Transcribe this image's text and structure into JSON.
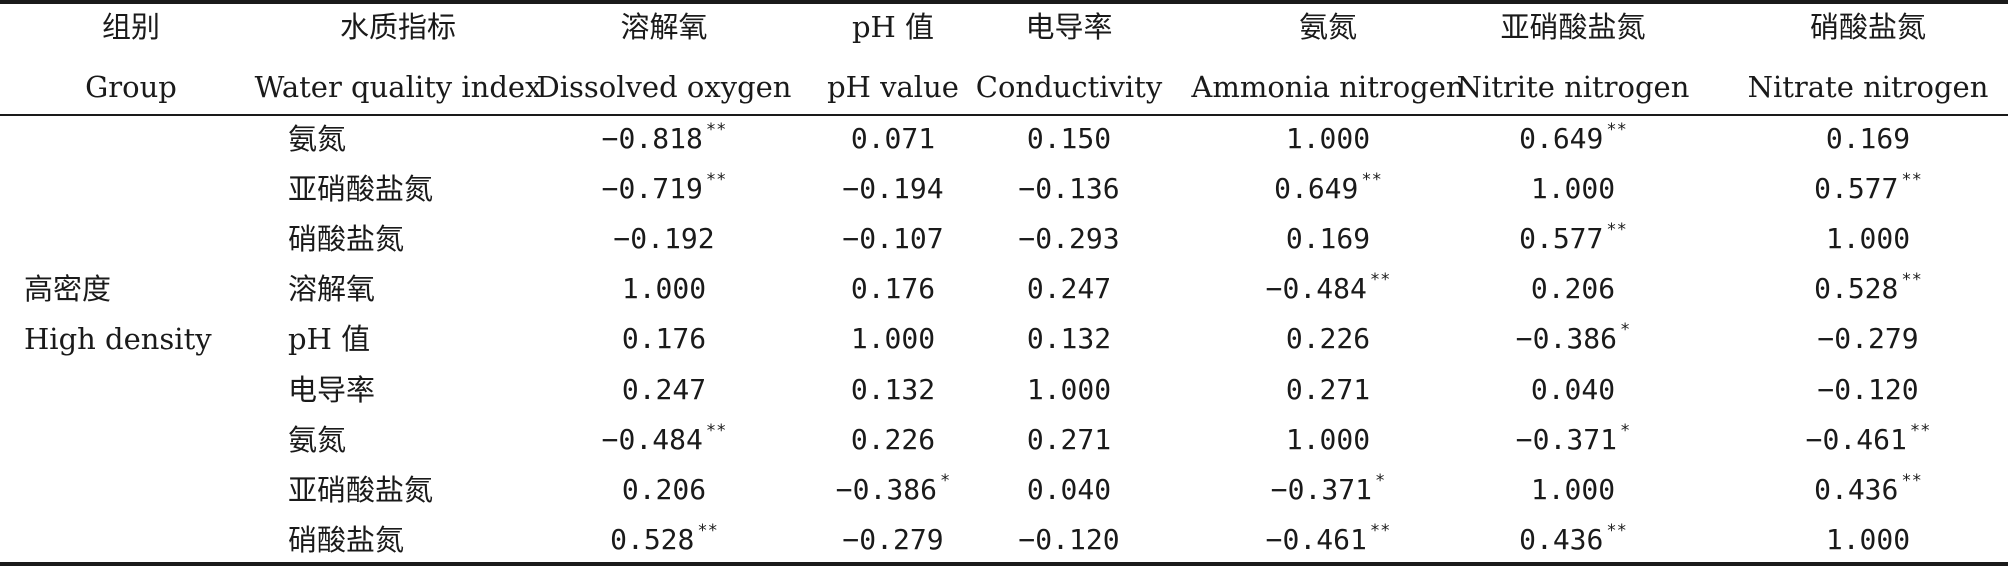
{
  "headers": [
    {
      "cn": "组别",
      "en": "Group"
    },
    {
      "cn": "水质指标",
      "en": "Water quality index"
    },
    {
      "cn": "溶解氧",
      "en": "Dissolved oxygen"
    },
    {
      "cn": "pH 值",
      "en": "pH value"
    },
    {
      "cn": "电导率",
      "en": "Conductivity"
    },
    {
      "cn": "氨氮",
      "en": "Ammonia nitrogen"
    },
    {
      "cn": "亚硝酸盐氮",
      "en": "Nitrite nitrogen"
    },
    {
      "cn": "硝酸盐氮",
      "en": "Nitrate nitrogen"
    }
  ],
  "group": {
    "cn": "高密度",
    "en": "High density"
  },
  "rows": [
    {
      "label": "氨氮",
      "values": [
        {
          "v": "−0.818",
          "sig": "**"
        },
        {
          "v": "0.071",
          "sig": ""
        },
        {
          "v": "0.150",
          "sig": ""
        },
        {
          "v": "1.000",
          "sig": ""
        },
        {
          "v": "0.649",
          "sig": "**"
        },
        {
          "v": "0.169",
          "sig": ""
        }
      ]
    },
    {
      "label": "亚硝酸盐氮",
      "values": [
        {
          "v": "−0.719",
          "sig": "**"
        },
        {
          "v": "−0.194",
          "sig": ""
        },
        {
          "v": "−0.136",
          "sig": ""
        },
        {
          "v": "0.649",
          "sig": "**"
        },
        {
          "v": "1.000",
          "sig": ""
        },
        {
          "v": "0.577",
          "sig": "**"
        }
      ]
    },
    {
      "label": "硝酸盐氮",
      "values": [
        {
          "v": "−0.192",
          "sig": ""
        },
        {
          "v": "−0.107",
          "sig": ""
        },
        {
          "v": "−0.293",
          "sig": ""
        },
        {
          "v": "0.169",
          "sig": ""
        },
        {
          "v": "0.577",
          "sig": "**"
        },
        {
          "v": "1.000",
          "sig": ""
        }
      ]
    },
    {
      "label": "溶解氧",
      "values": [
        {
          "v": "1.000",
          "sig": ""
        },
        {
          "v": "0.176",
          "sig": ""
        },
        {
          "v": "0.247",
          "sig": ""
        },
        {
          "v": "−0.484",
          "sig": "**"
        },
        {
          "v": "0.206",
          "sig": ""
        },
        {
          "v": "0.528",
          "sig": "**"
        }
      ]
    },
    {
      "label": "pH 值",
      "values": [
        {
          "v": "0.176",
          "sig": ""
        },
        {
          "v": "1.000",
          "sig": ""
        },
        {
          "v": "0.132",
          "sig": ""
        },
        {
          "v": "0.226",
          "sig": ""
        },
        {
          "v": "−0.386",
          "sig": "*"
        },
        {
          "v": "−0.279",
          "sig": ""
        }
      ]
    },
    {
      "label": "电导率",
      "values": [
        {
          "v": "0.247",
          "sig": ""
        },
        {
          "v": "0.132",
          "sig": ""
        },
        {
          "v": "1.000",
          "sig": ""
        },
        {
          "v": "0.271",
          "sig": ""
        },
        {
          "v": "0.040",
          "sig": ""
        },
        {
          "v": "−0.120",
          "sig": ""
        }
      ]
    },
    {
      "label": "氨氮",
      "values": [
        {
          "v": "−0.484",
          "sig": "**"
        },
        {
          "v": "0.226",
          "sig": ""
        },
        {
          "v": "0.271",
          "sig": ""
        },
        {
          "v": "1.000",
          "sig": ""
        },
        {
          "v": "−0.371",
          "sig": "*"
        },
        {
          "v": "−0.461",
          "sig": "**"
        }
      ]
    },
    {
      "label": "亚硝酸盐氮",
      "values": [
        {
          "v": "0.206",
          "sig": ""
        },
        {
          "v": "−0.386",
          "sig": "*"
        },
        {
          "v": "0.040",
          "sig": ""
        },
        {
          "v": "−0.371",
          "sig": "*"
        },
        {
          "v": "1.000",
          "sig": ""
        },
        {
          "v": "0.436",
          "sig": "**"
        }
      ]
    },
    {
      "label": "硝酸盐氮",
      "values": [
        {
          "v": "0.528",
          "sig": "**"
        },
        {
          "v": "−0.279",
          "sig": ""
        },
        {
          "v": "−0.120",
          "sig": ""
        },
        {
          "v": "−0.461",
          "sig": "**"
        },
        {
          "v": "0.436",
          "sig": "**"
        },
        {
          "v": "1.000",
          "sig": ""
        }
      ]
    }
  ]
}
